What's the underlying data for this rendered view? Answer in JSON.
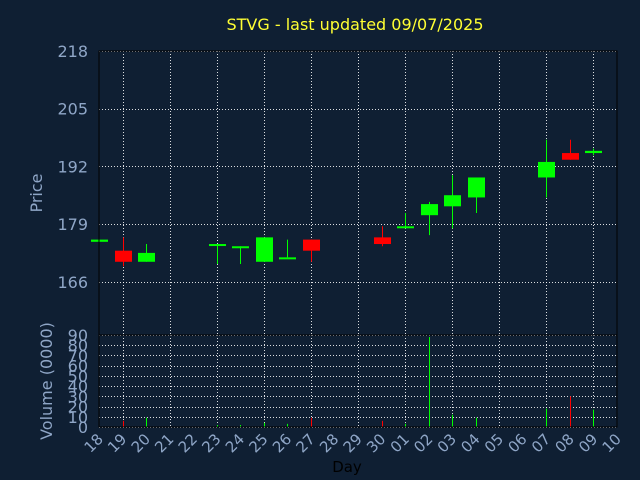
{
  "chart_data": {
    "type": "candlestick",
    "title": "STVG - last updated 09/07/2025",
    "xlabel": "Day",
    "price_panel": {
      "ylabel": "Price",
      "ylim": [
        154,
        218
      ],
      "yticks": [
        166,
        179,
        192,
        205,
        218
      ],
      "grid": true
    },
    "volume_panel": {
      "ylabel": "Volume (0000)",
      "ylim": [
        0,
        90
      ],
      "yticks": [
        0,
        10,
        20,
        30,
        40,
        50,
        60,
        70,
        80,
        90
      ],
      "grid": true
    },
    "x_ticks": [
      "18",
      "19",
      "20",
      "21",
      "22",
      "23",
      "24",
      "25",
      "26",
      "27",
      "28",
      "29",
      "30",
      "01",
      "02",
      "03",
      "04",
      "05",
      "06",
      "07",
      "08",
      "09",
      "10"
    ],
    "candles": [
      {
        "pos": 0,
        "open": 175,
        "close": 175.5,
        "high": 175.5,
        "low": 175,
        "volume": 0,
        "dir": "up"
      },
      {
        "pos": 1,
        "open": 173,
        "close": 170.5,
        "high": 176,
        "low": 169.5,
        "volume": 6,
        "dir": "down"
      },
      {
        "pos": 2,
        "open": 170.5,
        "close": 172.5,
        "high": 174.5,
        "low": 170.5,
        "volume": 9,
        "dir": "up"
      },
      {
        "pos": 5,
        "open": 174.5,
        "close": 174.5,
        "high": 174.5,
        "low": 170,
        "volume": 2,
        "dir": "up"
      },
      {
        "pos": 6,
        "open": 174,
        "close": 174,
        "high": 174,
        "low": 170,
        "volume": 2,
        "dir": "up"
      },
      {
        "pos": 7,
        "open": 170.5,
        "close": 176,
        "high": 176,
        "low": 170.5,
        "volume": 4,
        "dir": "up"
      },
      {
        "pos": 8,
        "open": 171.5,
        "close": 171.5,
        "high": 175.5,
        "low": 171.5,
        "volume": 3,
        "dir": "up"
      },
      {
        "pos": 9,
        "open": 175.5,
        "close": 173,
        "high": 175.5,
        "low": 170.5,
        "volume": 9,
        "dir": "down"
      },
      {
        "pos": 12,
        "open": 176,
        "close": 174.5,
        "high": 178.5,
        "low": 174,
        "volume": 6,
        "dir": "down"
      },
      {
        "pos": 13,
        "open": 178.5,
        "close": 178.5,
        "high": 181.5,
        "low": 178,
        "volume": 3,
        "dir": "up"
      },
      {
        "pos": 14,
        "open": 181,
        "close": 183.5,
        "high": 184,
        "low": 176.5,
        "volume": 88,
        "dir": "up"
      },
      {
        "pos": 15,
        "open": 183,
        "close": 185.5,
        "high": 190,
        "low": 178,
        "volume": 12,
        "dir": "up"
      },
      {
        "pos": 16,
        "open": 185,
        "close": 189.5,
        "high": 189.5,
        "low": 181.5,
        "volume": 9,
        "dir": "up"
      },
      {
        "pos": 19,
        "open": 189.5,
        "close": 193,
        "high": 198,
        "low": 185,
        "volume": 18,
        "dir": "up"
      },
      {
        "pos": 20,
        "open": 195,
        "close": 193.5,
        "high": 198,
        "low": 193.5,
        "volume": 30,
        "dir": "down"
      },
      {
        "pos": 21,
        "open": 195,
        "close": 195.5,
        "high": 196,
        "low": 194.5,
        "volume": 17,
        "dir": "up"
      }
    ],
    "colors": {
      "up": "#00ff00",
      "down": "#ff0000",
      "grid": "#ffffff",
      "axis": "#000000",
      "plot_bg": "#0f1f33",
      "page_bg": "#0f1f33",
      "title": "#ffff33",
      "text": "#8fa6c7"
    }
  }
}
